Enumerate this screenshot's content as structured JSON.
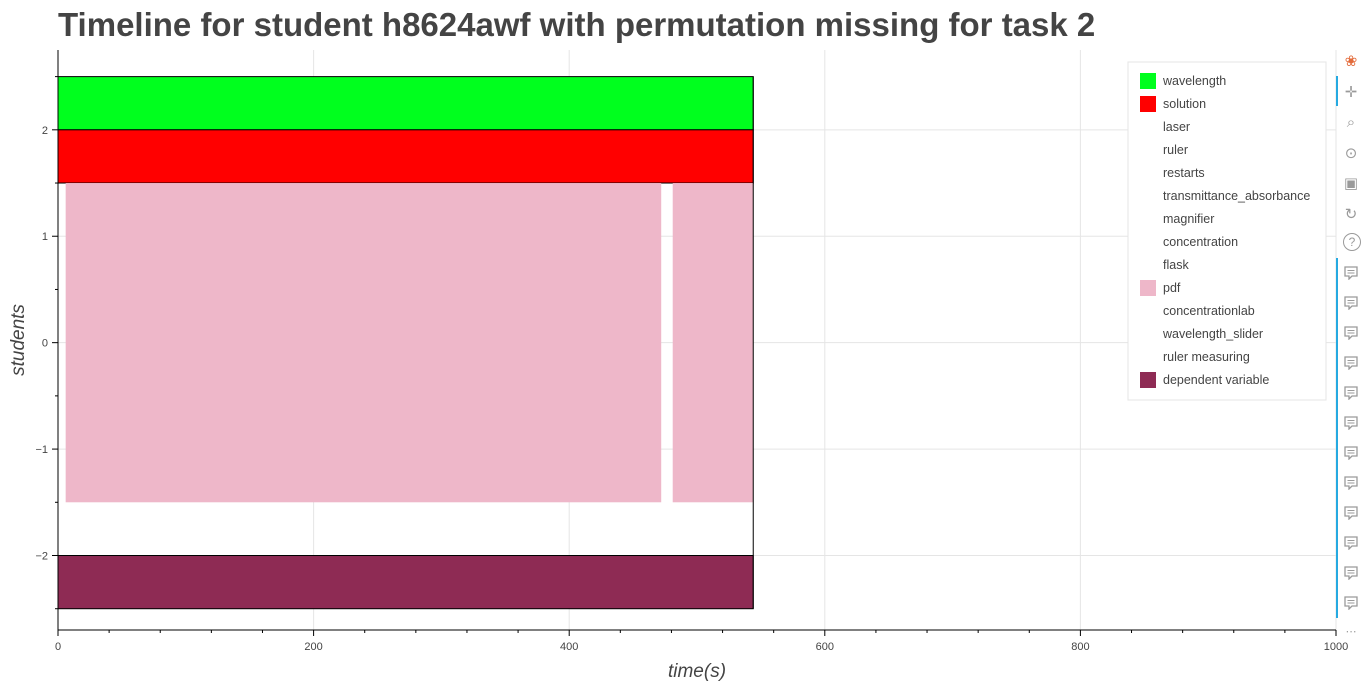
{
  "title": "Timeline for student h8624awf with permutation missing for task 2",
  "colors": {
    "text": "#444444",
    "grid": "#e5e5e5",
    "axis": "#000000",
    "toolbar_accent": "#26aae1"
  },
  "toolbar": {
    "tools": [
      "bokeh-logo-icon",
      "pan-icon",
      "box-zoom-icon",
      "wheel-zoom-icon",
      "save-icon",
      "reset-icon",
      "help-icon"
    ],
    "hover_tool_count": 12
  },
  "chart_data": {
    "type": "timeline",
    "title": "Timeline for student h8624awf with permutation missing for task 2",
    "xlabel": "time(s)",
    "ylabel": "students",
    "xlim": [
      0,
      1000
    ],
    "ylim": [
      -2.7,
      2.75
    ],
    "x_ticks": [
      0,
      200,
      400,
      600,
      800,
      1000
    ],
    "y_ticks": [
      -2,
      -1,
      0,
      1,
      2
    ],
    "grid": true,
    "legend_position": "top-right",
    "legend": [
      {
        "name": "wavelength",
        "color": "#00ff1e"
      },
      {
        "name": "solution",
        "color": "#ff0000"
      },
      {
        "name": "laser",
        "color": null
      },
      {
        "name": "ruler",
        "color": null
      },
      {
        "name": "restarts",
        "color": null
      },
      {
        "name": "transmittance_absorbance",
        "color": null
      },
      {
        "name": "magnifier",
        "color": null
      },
      {
        "name": "concentration",
        "color": null
      },
      {
        "name": "flask",
        "color": null
      },
      {
        "name": "pdf",
        "color": "#eeb7c9"
      },
      {
        "name": "concentrationlab",
        "color": null
      },
      {
        "name": "wavelength_slider",
        "color": null
      },
      {
        "name": "ruler measuring",
        "color": null
      },
      {
        "name": "dependent variable",
        "color": "#8e2b54"
      }
    ],
    "bars": [
      {
        "series": "wavelength",
        "x0": 0,
        "x1": 544,
        "y0": 2.0,
        "y1": 2.5,
        "color": "#00ff1e",
        "outline": true
      },
      {
        "series": "solution",
        "x0": 0,
        "x1": 544,
        "y0": 1.5,
        "y1": 2.0,
        "color": "#ff0000",
        "outline": true
      },
      {
        "series": "pdf",
        "x0": 6,
        "x1": 472,
        "y0": -1.5,
        "y1": 1.5,
        "color": "#eeb7c9",
        "outline": false
      },
      {
        "series": "pdf",
        "x0": 481,
        "x1": 544,
        "y0": -1.5,
        "y1": 1.5,
        "color": "#eeb7c9",
        "outline": false
      },
      {
        "series": "dependent variable",
        "x0": 0,
        "x1": 544,
        "y0": -2.5,
        "y1": -2.0,
        "color": "#8e2b54",
        "outline": true
      }
    ],
    "end_marker_x": 544
  }
}
